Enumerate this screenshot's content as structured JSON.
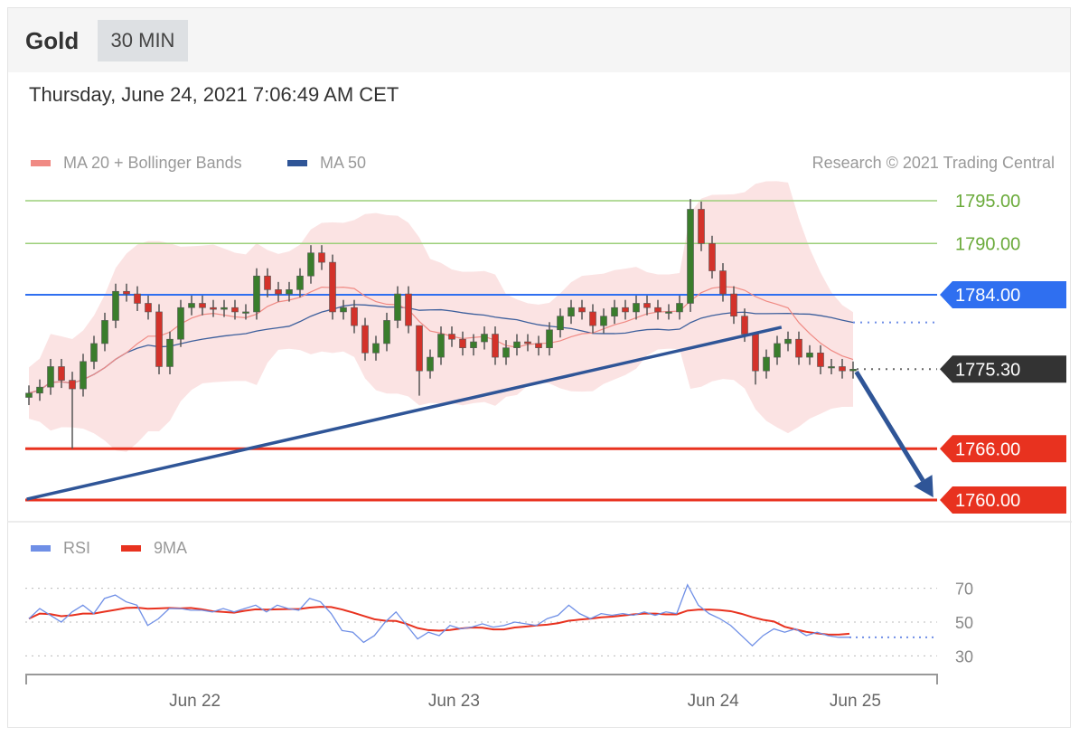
{
  "header": {
    "symbol": "Gold",
    "timeframe": "30 MIN",
    "datetime": "Thursday, June 24, 2021 7:06:49 AM CET",
    "copyright": "Research © 2021 Trading Central"
  },
  "colors": {
    "up": "#3a7d2c",
    "down": "#d3322a",
    "bands": "#fbe3e3",
    "ma20": "#f08a84",
    "ma50": "#3d5f9c",
    "resistance": "#9ccf7a",
    "pivot": "#2f6ff0",
    "last": "#333333",
    "support": "#e8321f",
    "trend": "#2f5597",
    "rsi": "#6f8fe6",
    "rsi_ma": "#e8321f"
  },
  "chart_data": [
    {
      "type": "candlestick",
      "legend": [
        {
          "name": "MA 20 + Bollinger Bands",
          "color": "#f08a84"
        },
        {
          "name": "MA 50",
          "color": "#2f5597"
        }
      ],
      "ylim": [
        1759,
        1796.5
      ],
      "levels": [
        {
          "value": 1795.0,
          "label": "1795.00",
          "kind": "resistance"
        },
        {
          "value": 1790.0,
          "label": "1790.00",
          "kind": "resistance"
        },
        {
          "value": 1784.0,
          "label": "1784.00",
          "kind": "pivot"
        },
        {
          "value": 1775.3,
          "label": "1775.30",
          "kind": "last"
        },
        {
          "value": 1766.0,
          "label": "1766.00",
          "kind": "support"
        },
        {
          "value": 1760.0,
          "label": "1760.00",
          "kind": "support"
        }
      ],
      "trendline": [
        [
          -0.2,
          1760.1
        ],
        [
          69.4,
          1780.2
        ]
      ],
      "arrow": [
        [
          76.3,
          1775.0
        ],
        [
          83.4,
          1760.3
        ]
      ],
      "closes": [
        1772.5,
        1773.2,
        1775.6,
        1774,
        1773,
        1776.2,
        1778.3,
        1781,
        1784.4,
        1784.1,
        1783,
        1782,
        1775.6,
        1778.8,
        1782.5,
        1783,
        1782.5,
        1782.3,
        1782.5,
        1782,
        1782,
        1786.2,
        1784.6,
        1784.1,
        1784.6,
        1786.2,
        1788.9,
        1787.8,
        1782,
        1782.5,
        1780.4,
        1777.2,
        1778.3,
        1781,
        1784.1,
        1780.4,
        1775.1,
        1776.7,
        1779.4,
        1778.8,
        1777.8,
        1778.5,
        1779.4,
        1776.7,
        1777.8,
        1778.5,
        1778.3,
        1777.8,
        1779.9,
        1781.5,
        1782.5,
        1782,
        1780.4,
        1781.5,
        1782.5,
        1782,
        1783,
        1782.5,
        1782,
        1782,
        1783,
        1794,
        1790,
        1786.8,
        1784.1,
        1781.5,
        1779.4,
        1775.1,
        1776.7,
        1778.3,
        1778.8,
        1776.7,
        1777.2,
        1775.6,
        1775.6,
        1775.1,
        1775.3
      ],
      "wicks": {
        "4": [
          1775,
          1766
        ],
        "36": [
          1778,
          1772.2
        ],
        "61": [
          1795.2,
          1782
        ],
        "67": [
          1777,
          1773.5
        ]
      }
    },
    {
      "type": "line",
      "legend": [
        {
          "name": "RSI",
          "color": "#6f8fe6"
        },
        {
          "name": "9MA",
          "color": "#e8321f"
        }
      ],
      "yticks": [
        70,
        50,
        30
      ],
      "ylim": [
        25,
        75
      ],
      "rsi": [
        52,
        58,
        54,
        50,
        56,
        60,
        55,
        64,
        66,
        62,
        60,
        48,
        52,
        58,
        58,
        57,
        57,
        56,
        58,
        56,
        58,
        60,
        56,
        60,
        58,
        57,
        64,
        62,
        55,
        45,
        44,
        38,
        42,
        50,
        56,
        48,
        40,
        44,
        42,
        48,
        46,
        47,
        49,
        47,
        48,
        50,
        49,
        48,
        52,
        54,
        60,
        55,
        52,
        55,
        54,
        55,
        54,
        56,
        54,
        56,
        55,
        72,
        60,
        55,
        52,
        48,
        42,
        36,
        42,
        46,
        44,
        46,
        42,
        44,
        42,
        41,
        41
      ]
    },
    {
      "type": "axis",
      "xticks": [
        {
          "label": "Jun 22",
          "index": 15.3
        },
        {
          "label": "Jun 23",
          "index": 39.2
        },
        {
          "label": "Jun 24",
          "index": 63.1
        },
        {
          "label": "Jun 25",
          "index": 76.2
        }
      ]
    }
  ]
}
